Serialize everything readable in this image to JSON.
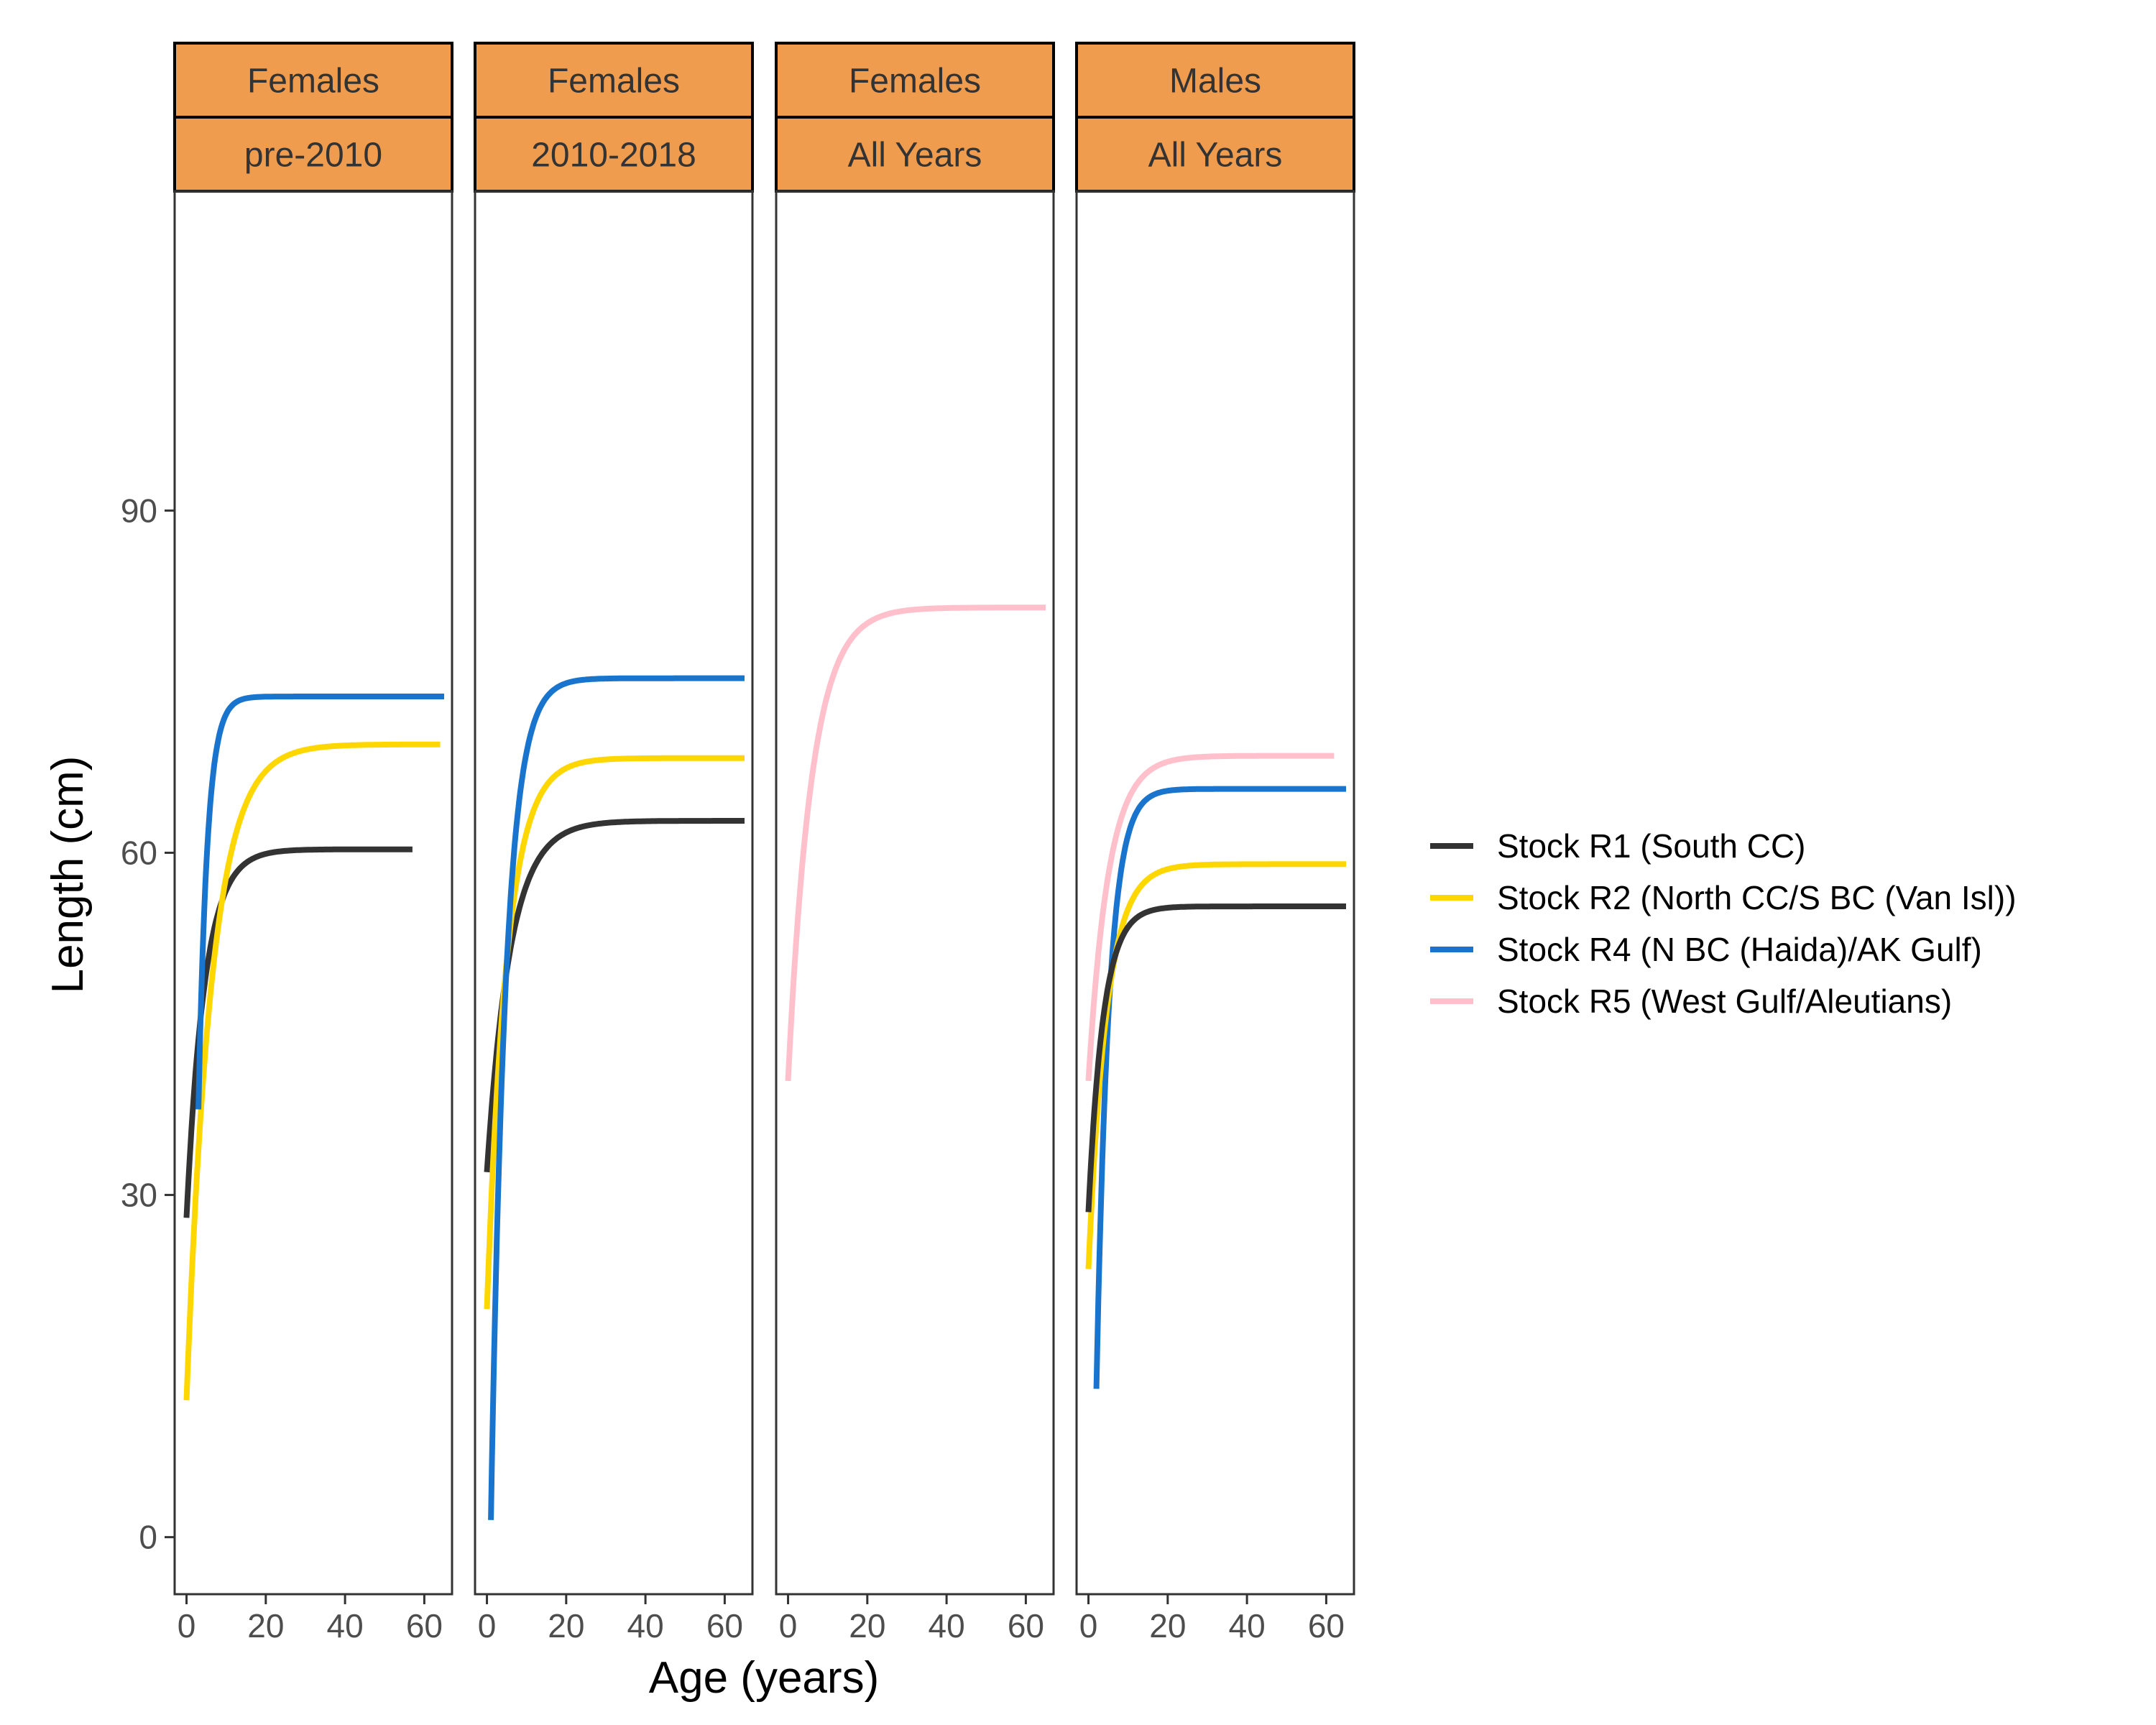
{
  "chart_data": {
    "type": "line",
    "xlabel": "Age (years)",
    "ylabel": "Length (cm)",
    "xlim": [
      -3,
      67
    ],
    "ylim": [
      -5,
      118
    ],
    "x_ticks": [
      0,
      20,
      40,
      60
    ],
    "x_tick_labels": [
      "0",
      "20",
      "40",
      "60"
    ],
    "y_ticks": [
      0,
      30,
      60,
      90
    ],
    "y_tick_labels": [
      "0",
      "30",
      "60",
      "90"
    ],
    "grid": false,
    "strip_color": "#F09C4E",
    "legend_position": "right",
    "legend": [
      {
        "key": "R1",
        "label": "Stock R1 (South CC)",
        "color": "#333333"
      },
      {
        "key": "R2",
        "label": "Stock R2 (North CC/S BC (Van Isl))",
        "color": "#FFD700"
      },
      {
        "key": "R4",
        "label": "Stock R4 (N BC (Haida)/AK Gulf)",
        "color": "#1874CD"
      },
      {
        "key": "R5",
        "label": "Stock R5 (West Gulf/Aleutians)",
        "color": "#FFC0CB"
      }
    ],
    "panels": [
      {
        "strip_top": "Females",
        "strip_bottom": "pre-2010",
        "series": [
          {
            "key": "R1",
            "linf": 60.3,
            "l0": 28,
            "k": 0.22,
            "x_start": 0,
            "x_end": 57
          },
          {
            "key": "R2",
            "linf": 69.5,
            "l0": 12,
            "k": 0.16,
            "x_start": 0,
            "x_end": 64
          },
          {
            "key": "R4",
            "linf": 73.7,
            "l0": 37.5,
            "k": 0.45,
            "x_start": 3,
            "x_end": 65
          }
        ]
      },
      {
        "strip_top": "Females",
        "strip_bottom": "2010-2018",
        "series": [
          {
            "key": "R1",
            "linf": 62.8,
            "l0": 32,
            "k": 0.17,
            "x_start": 0,
            "x_end": 65
          },
          {
            "key": "R2",
            "linf": 68.3,
            "l0": 20,
            "k": 0.2,
            "x_start": 0,
            "x_end": 65
          },
          {
            "key": "R4",
            "linf": 75.3,
            "l0": 1.5,
            "k": 0.27,
            "x_start": 1,
            "x_end": 65
          }
        ]
      },
      {
        "strip_top": "Females",
        "strip_bottom": "All Years",
        "series": [
          {
            "key": "R5",
            "linf": 81.5,
            "l0": 40,
            "k": 0.17,
            "x_start": 0,
            "x_end": 65
          }
        ]
      },
      {
        "strip_top": "Males",
        "strip_bottom": "All Years",
        "series": [
          {
            "key": "R5",
            "linf": 68.5,
            "l0": 40,
            "k": 0.2,
            "x_start": 0,
            "x_end": 62
          },
          {
            "key": "R4",
            "linf": 65.6,
            "l0": 13,
            "k": 0.32,
            "x_start": 2,
            "x_end": 65
          },
          {
            "key": "R2",
            "linf": 59.0,
            "l0": 23.5,
            "k": 0.22,
            "x_start": 0,
            "x_end": 65
          },
          {
            "key": "R1",
            "linf": 55.3,
            "l0": 28.5,
            "k": 0.27,
            "x_start": 0,
            "x_end": 65
          }
        ]
      }
    ]
  }
}
